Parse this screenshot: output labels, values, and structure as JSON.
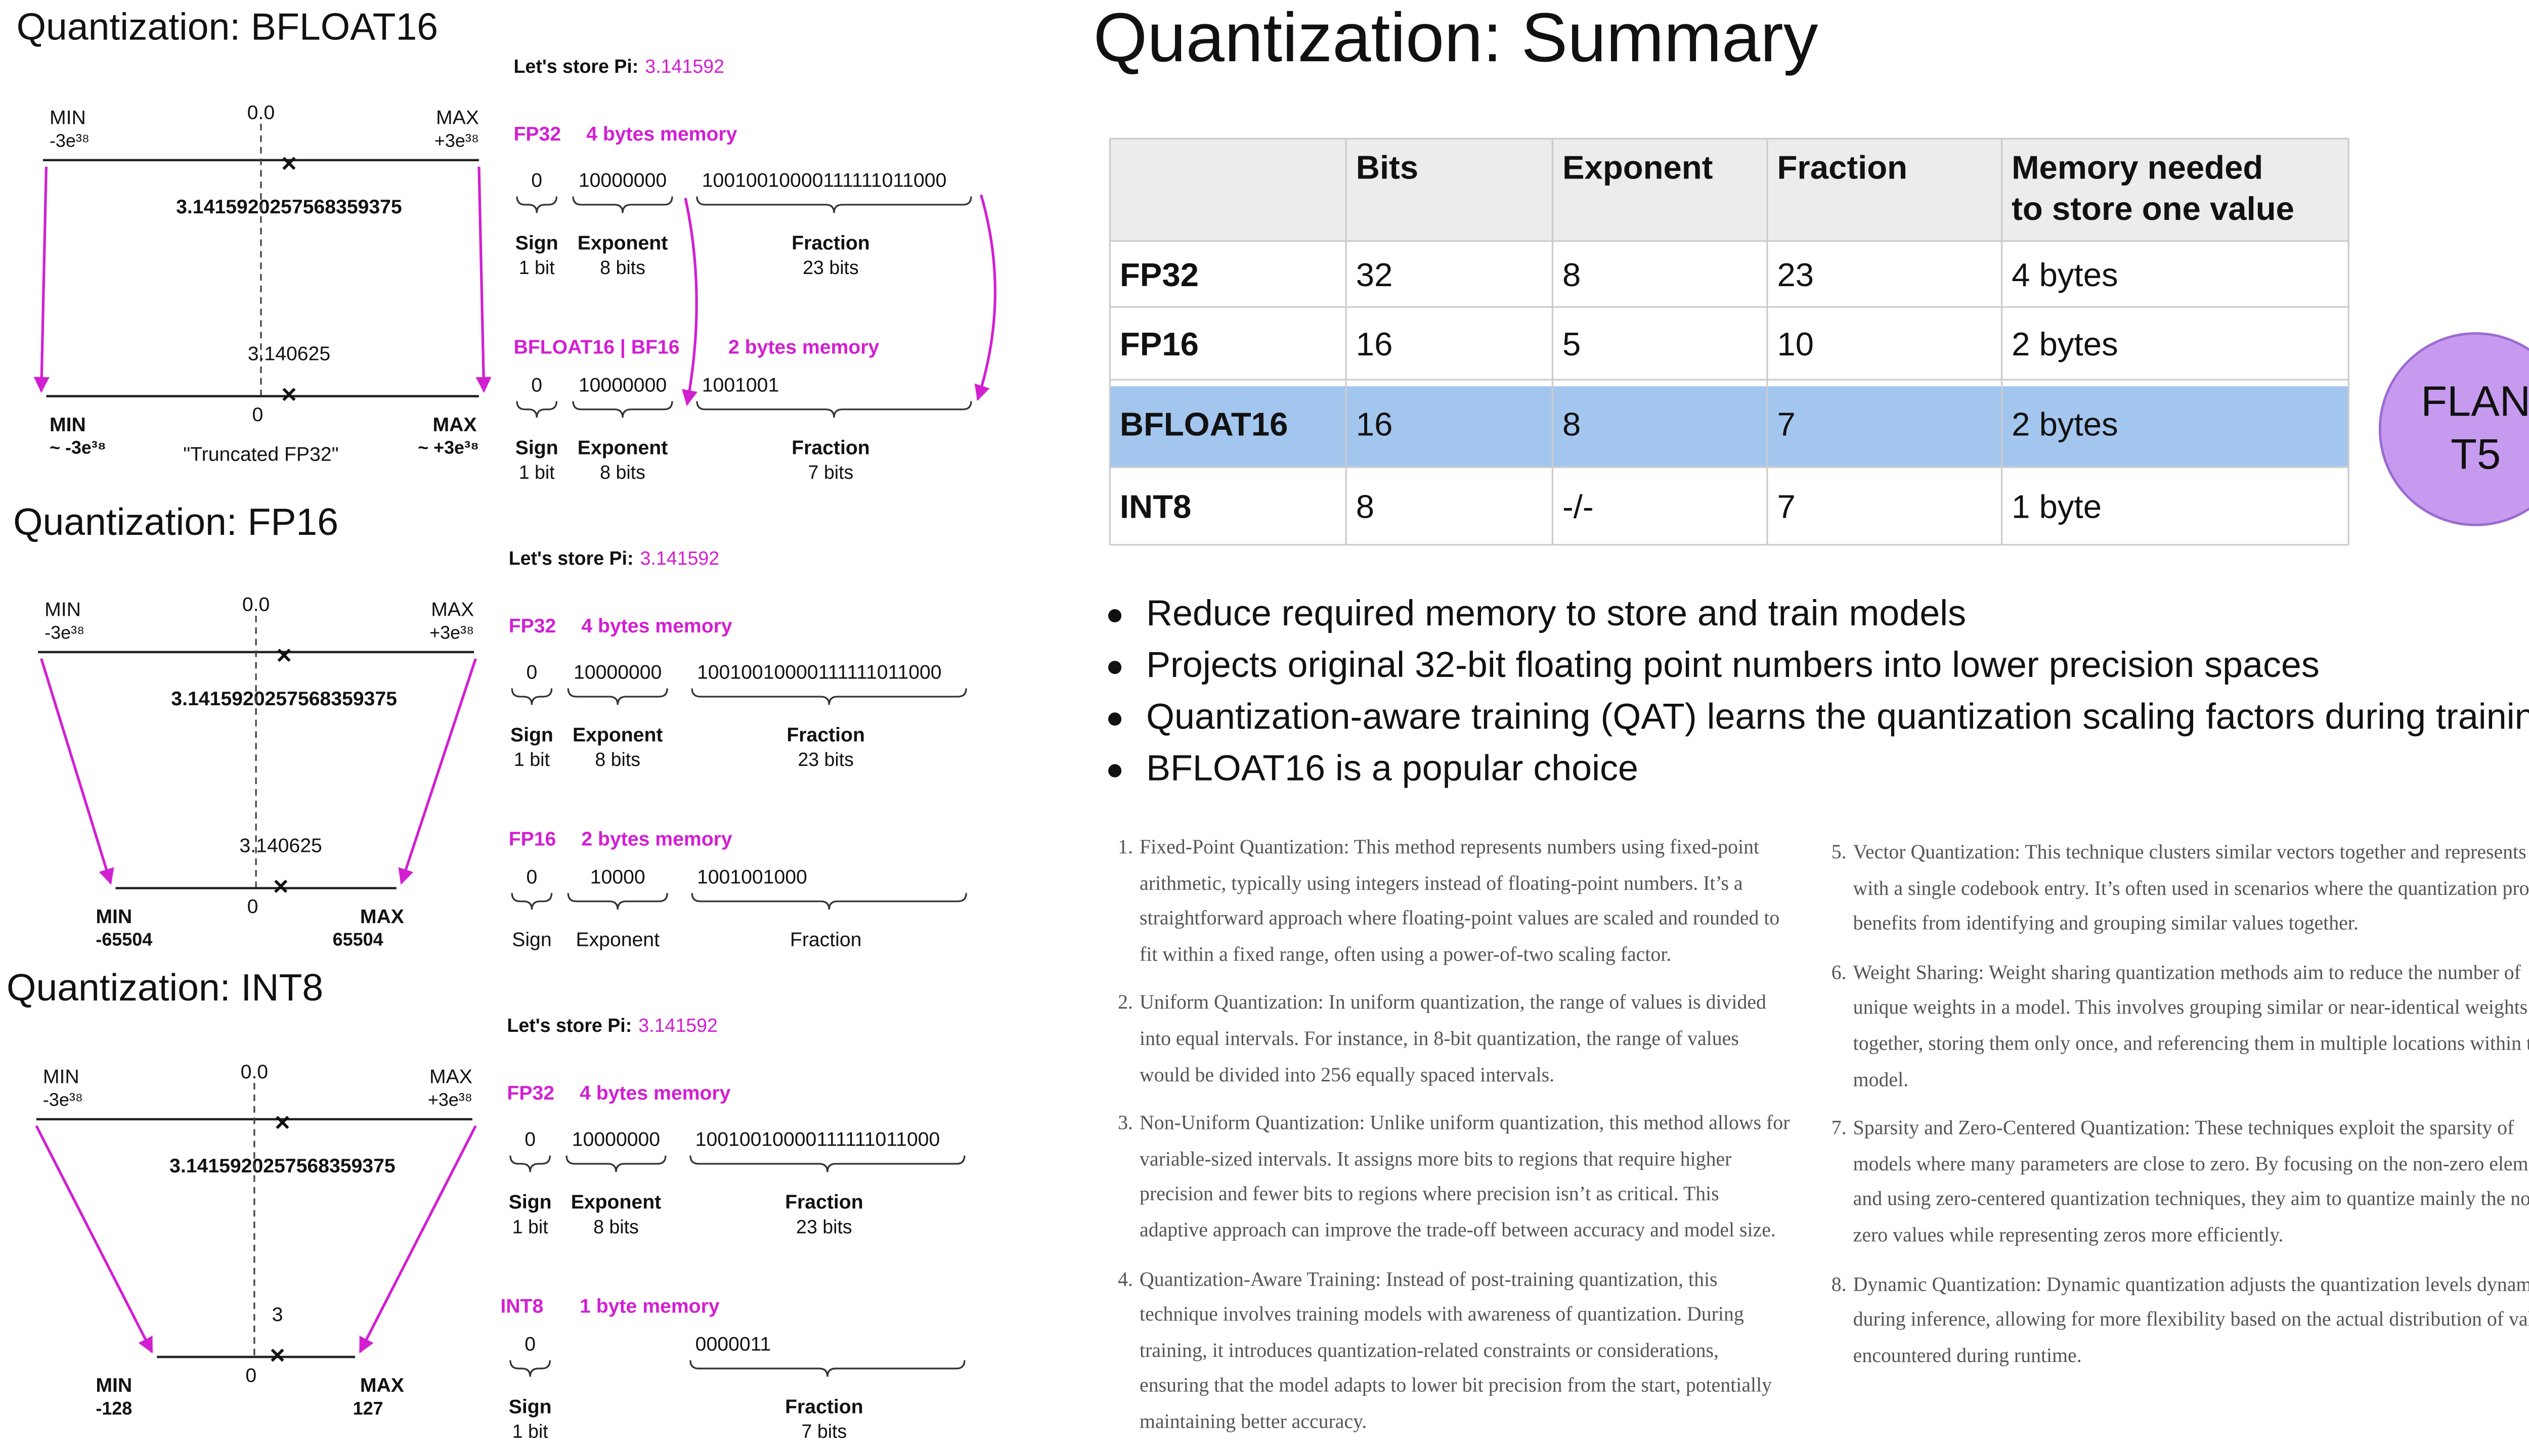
{
  "panels": [
    {
      "title": "Quantization: BFLOAT16",
      "store_label": "Let's store Pi:",
      "pi": "3.141592",
      "top": {
        "min": "MIN",
        "min_value": "-3e³⁸",
        "zero": "0.0",
        "max": "MAX",
        "max_value": "+3e³⁸",
        "value": "3.1415920257568359375"
      },
      "bottom": {
        "min": "MIN",
        "min_value": "~ -3e³⁸",
        "zero": "0",
        "max": "MAX",
        "max_value": "~ +3e³⁸",
        "value": "3.140625",
        "note": "\"Truncated FP32\""
      },
      "rows": [
        {
          "label": "FP32",
          "memory": "4 bytes memory",
          "fields": [
            {
              "bits": "0",
              "name": "Sign",
              "size": "1 bit"
            },
            {
              "bits": "10000000",
              "name": "Exponent",
              "size": "8 bits"
            },
            {
              "bits": "10010010000111111011000",
              "name": "Fraction",
              "size": "23 bits"
            }
          ]
        },
        {
          "label": "BFLOAT16 | BF16",
          "memory": "2 bytes memory",
          "fields": [
            {
              "bits": "0",
              "name": "Sign",
              "size": "1 bit"
            },
            {
              "bits": "10000000",
              "name": "Exponent",
              "size": "8 bits"
            },
            {
              "bits": "1001001",
              "name": "Fraction",
              "size": "7 bits"
            }
          ]
        }
      ]
    },
    {
      "title": "Quantization: FP16",
      "store_label": "Let's store Pi:",
      "pi": "3.141592",
      "top": {
        "min": "MIN",
        "min_value": "-3e³⁸",
        "zero": "0.0",
        "max": "MAX",
        "max_value": "+3e³⁸",
        "value": "3.1415920257568359375"
      },
      "bottom": {
        "min": "MIN",
        "min_value": "-65504",
        "zero": "0",
        "max": "MAX",
        "max_value": "65504",
        "value": "3.140625"
      },
      "rows": [
        {
          "label": "FP32",
          "memory": "4 bytes memory",
          "fields": [
            {
              "bits": "0",
              "name": "Sign",
              "size": "1 bit"
            },
            {
              "bits": "10000000",
              "name": "Exponent",
              "size": "8 bits"
            },
            {
              "bits": "10010010000111111011000",
              "name": "Fraction",
              "size": "23 bits"
            }
          ]
        },
        {
          "label": "FP16",
          "memory": "2 bytes memory",
          "fields": [
            {
              "bits": "0",
              "name": "Sign"
            },
            {
              "bits": "10000",
              "name": "Exponent"
            },
            {
              "bits": "1001001000",
              "name": "Fraction"
            }
          ]
        }
      ]
    },
    {
      "title": "Quantization: INT8",
      "store_label": "Let's store Pi:",
      "pi": "3.141592",
      "top": {
        "min": "MIN",
        "min_value": "-3e³⁸",
        "zero": "0.0",
        "max": "MAX",
        "max_value": "+3e³⁸",
        "value": "3.1415920257568359375"
      },
      "bottom": {
        "min": "MIN",
        "min_value": "-128",
        "zero": "0",
        "max": "MAX",
        "max_value": "127",
        "value": "3"
      },
      "rows": [
        {
          "label": "FP32",
          "memory": "4 bytes memory",
          "fields": [
            {
              "bits": "0",
              "name": "Sign",
              "size": "1 bit"
            },
            {
              "bits": "10000000",
              "name": "Exponent",
              "size": "8 bits"
            },
            {
              "bits": "10010010000111111011000",
              "name": "Fraction",
              "size": "23 bits"
            }
          ]
        },
        {
          "label": "INT8",
          "memory": "1 byte memory",
          "fields": [
            {
              "bits": "0",
              "name": "Sign",
              "size": "1 bit"
            },
            {
              "bits": "0000011",
              "name": "Fraction",
              "size": "7 bits"
            }
          ]
        }
      ]
    }
  ],
  "summary": {
    "title": "Quantization: Summary",
    "table": {
      "columns": [
        [
          "Bits"
        ],
        [
          "Exponent"
        ],
        [
          "Fraction"
        ],
        [
          "Memory needed",
          "to store one value"
        ]
      ],
      "rows": [
        [
          "FP32",
          "32",
          "8",
          "23",
          "4 bytes"
        ],
        [
          "FP16",
          "16",
          "5",
          "10",
          "2 bytes"
        ],
        [
          "BFLOAT16",
          "16",
          "8",
          "7",
          "2 bytes"
        ],
        [
          "INT8",
          "8",
          "-/-",
          "7",
          "1 byte"
        ]
      ],
      "highlight_row": 2,
      "highlight_color": "#a3c6ef"
    },
    "badge": [
      "FLAN",
      "T5"
    ],
    "bullets": [
      "Reduce required memory to store and train models",
      "Projects original 32-bit floating point numbers into lower precision spaces",
      "Quantization-aware training (QAT) learns the quantization scaling factors during training",
      "BFLOAT16 is a popular choice"
    ],
    "methods": [
      {
        "number": "1.",
        "text": "Fixed-Point Quantization: This method represents numbers using fixed-point arithmetic, typically using integers instead of floating-point numbers. It’s a straightforward approach where floating-point values are scaled and rounded to fit within a fixed range, often using a power-of-two scaling factor."
      },
      {
        "number": "2.",
        "text": "Uniform Quantization: In uniform quantization, the range of values is divided into equal intervals. For instance, in 8-bit quantization, the range of values would be divided into 256 equally spaced intervals."
      },
      {
        "number": "3.",
        "text": "Non-Uniform Quantization: Unlike uniform quantization, this method allows for variable-sized intervals. It assigns more bits to regions that require higher precision and fewer bits to regions where precision isn’t as critical. This adaptive approach can improve the trade-off between accuracy and model size."
      },
      {
        "number": "4.",
        "text": "Quantization-Aware Training: Instead of post-training quantization, this technique involves training models with awareness of quantization. During training, it introduces quantization-related constraints or considerations, ensuring that the model adapts to lower bit precision from the start, potentially maintaining better accuracy."
      },
      {
        "number": "5.",
        "text": "Vector Quantization: This technique clusters similar vectors together and represents them with a single codebook entry. It’s often used in scenarios where the quantization process benefits from identifying and grouping similar values together."
      },
      {
        "number": "6.",
        "text": "Weight Sharing: Weight sharing quantization methods aim to reduce the number of unique weights in a model. This involves grouping similar or near-identical weights together, storing them only once, and referencing them in multiple locations within the model."
      },
      {
        "number": "7.",
        "text": "Sparsity and Zero-Centered Quantization: These techniques exploit the sparsity of models where many parameters are close to zero. By focusing on the non-zero elements and using zero-centered quantization techniques, they aim to quantize mainly the non-zero values while representing zeros more efficiently."
      },
      {
        "number": "8.",
        "text": "Dynamic Quantization: Dynamic quantization adjusts the quantization levels dynamically during inference, allowing for more flexibility based on the actual distribution of values encountered during runtime."
      }
    ]
  }
}
